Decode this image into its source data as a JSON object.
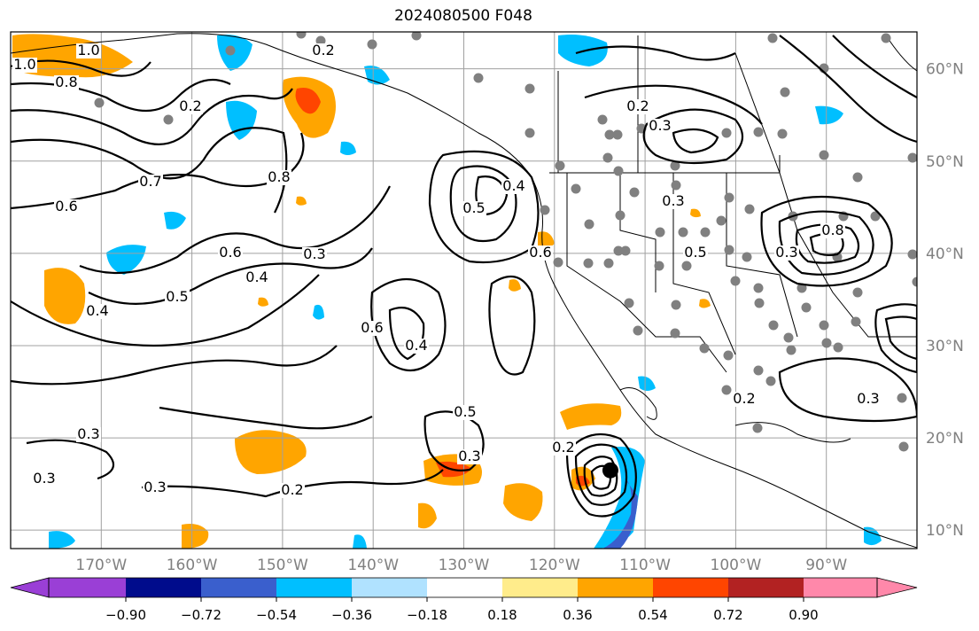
{
  "title": "2024080500 F048",
  "map": {
    "extent": {
      "lon_min": -180,
      "lon_max": -80,
      "lat_min": 8,
      "lat_max": 64
    },
    "lat_labels": [
      "60°N",
      "50°N",
      "40°N",
      "30°N",
      "20°N",
      "10°N"
    ],
    "lon_labels": [
      "170°W",
      "160°W",
      "150°W",
      "140°W",
      "130°W",
      "120°W",
      "110°W",
      "100°W",
      "90°W"
    ],
    "contour_labels": [
      "1.0",
      "1.0",
      "0.8",
      "0.8",
      "0.7",
      "0.6",
      "0.6",
      "0.5",
      "0.4",
      "0.4",
      "0.3",
      "0.3",
      "0.3",
      "0.2",
      "0.2",
      "0.2",
      "0.2",
      "0.3",
      "0.5",
      "0.6",
      "0.4",
      "0.5",
      "0.3",
      "0.2",
      "0.3",
      "0.4",
      "0.5",
      "0.6",
      "0.8",
      "0.3",
      "0.3",
      "0.2",
      "0.3"
    ],
    "cyclone_marker": {
      "lon": -115,
      "lat": 16
    }
  },
  "colorbar": {
    "ticks": [
      "−0.90",
      "−0.72",
      "−0.54",
      "−0.36",
      "−0.18",
      "0.18",
      "0.36",
      "0.54",
      "0.72",
      "0.90"
    ],
    "colors": [
      "#9a3fd6",
      "#000c8c",
      "#3a5fcd",
      "#00bfff",
      "#b0e2ff",
      "#ffffff",
      "#ffec8b",
      "#ffa500",
      "#ff4500",
      "#b22222",
      "#ff88aa",
      "#ff88aa"
    ],
    "under_color": "#9a3fd6",
    "over_color": "#ff88aa"
  }
}
